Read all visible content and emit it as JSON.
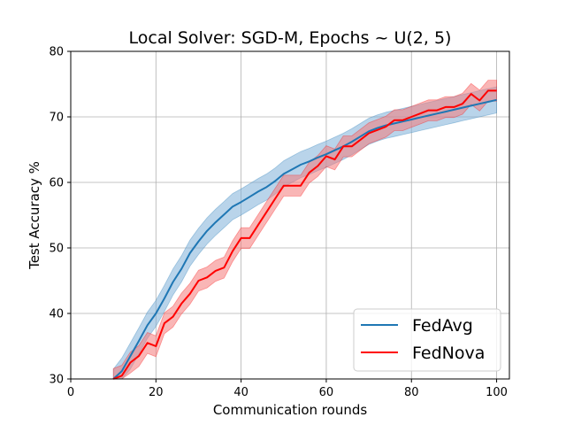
{
  "chart_data": {
    "type": "line",
    "title": "Local Solver: SGD-M, Epochs ~ U(2, 5)",
    "xlabel": "Communication rounds",
    "ylabel": "Test Accuracy %",
    "xlim": [
      0,
      103
    ],
    "ylim": [
      30,
      80
    ],
    "xticks": [
      0,
      20,
      40,
      60,
      80,
      100
    ],
    "yticks": [
      30,
      40,
      50,
      60,
      70,
      80
    ],
    "grid": true,
    "legend_position": "lower-right",
    "series": [
      {
        "name": "FedAvg",
        "color": "#1f77b4",
        "band_color": "#7fb1d9",
        "x": [
          10,
          12,
          14,
          16,
          18,
          20,
          22,
          24,
          26,
          28,
          30,
          32,
          34,
          36,
          38,
          40,
          42,
          44,
          46,
          48,
          50,
          52,
          54,
          56,
          58,
          60,
          62,
          64,
          66,
          68,
          70,
          72,
          74,
          76,
          78,
          80,
          82,
          84,
          86,
          88,
          90,
          92,
          94,
          96,
          98,
          100
        ],
        "y": [
          29.5,
          31.2,
          33.5,
          35.8,
          38.2,
          40.0,
          42.3,
          44.8,
          46.8,
          49.2,
          51.0,
          52.6,
          53.9,
          55.1,
          56.3,
          57.0,
          57.8,
          58.6,
          59.3,
          60.2,
          61.3,
          62.0,
          62.7,
          63.2,
          63.8,
          64.3,
          64.9,
          65.5,
          66.2,
          67.0,
          67.8,
          68.3,
          68.7,
          69.0,
          69.3,
          69.6,
          69.9,
          70.2,
          70.5,
          70.8,
          71.1,
          71.4,
          71.7,
          72.0,
          72.3,
          72.6
        ],
        "spread": 2.0
      },
      {
        "name": "FedNova",
        "color": "#ff0000",
        "band_color": "#f47a7a",
        "x": [
          10,
          12,
          14,
          16,
          18,
          20,
          22,
          24,
          26,
          28,
          30,
          32,
          34,
          36,
          38,
          40,
          42,
          44,
          46,
          48,
          50,
          52,
          54,
          56,
          58,
          60,
          62,
          64,
          66,
          68,
          70,
          72,
          74,
          76,
          78,
          80,
          82,
          84,
          86,
          88,
          90,
          92,
          94,
          96,
          98,
          100
        ],
        "y": [
          30.0,
          30.5,
          32.5,
          33.5,
          35.5,
          35.0,
          38.5,
          39.5,
          41.5,
          43.0,
          45.0,
          45.5,
          46.5,
          47.0,
          49.5,
          51.5,
          51.5,
          53.5,
          55.5,
          57.5,
          59.5,
          59.5,
          59.5,
          61.5,
          62.5,
          64.0,
          63.5,
          65.5,
          65.5,
          66.5,
          67.5,
          68.0,
          68.5,
          69.5,
          69.5,
          70.0,
          70.5,
          71.0,
          71.0,
          71.5,
          71.5,
          72.0,
          73.5,
          72.5,
          74.0,
          74.0
        ],
        "spread": 1.6
      }
    ]
  }
}
